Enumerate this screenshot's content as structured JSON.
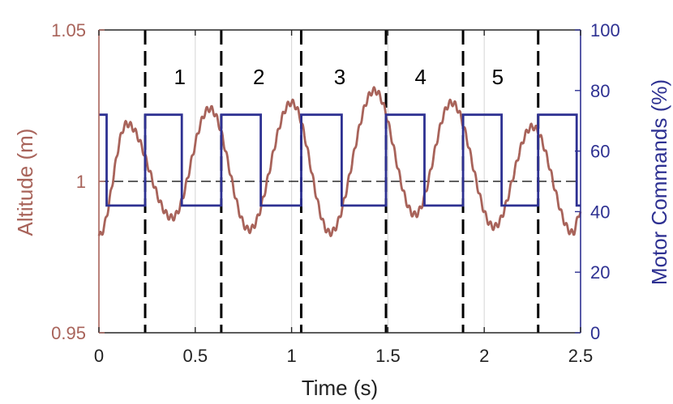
{
  "chart_data": {
    "type": "line",
    "xlabel": "Time (s)",
    "ylabel_left": "Altitude (m)",
    "ylabel_right": "Motor Commands (%)",
    "xlim": [
      0,
      2.5
    ],
    "ylim_left": [
      0.95,
      1.05
    ],
    "ylim_right": [
      0,
      100
    ],
    "x_ticks": [
      0,
      0.5,
      1,
      1.5,
      2,
      2.5
    ],
    "x_tick_labels": [
      "0",
      "0.5",
      "1",
      "1.5",
      "2",
      "2.5"
    ],
    "y_left_ticks": [
      0.95,
      1,
      1.05
    ],
    "y_left_tick_labels": [
      "0.95",
      "1",
      "1.05"
    ],
    "y_right_ticks": [
      0,
      20,
      40,
      60,
      80,
      100
    ],
    "y_right_tick_labels": [
      "0",
      "20",
      "40",
      "60",
      "80",
      "100"
    ],
    "grid": "vertical",
    "reference_line_left": 1.0,
    "phase_boundaries": [
      0.24,
      0.635,
      1.05,
      1.49,
      1.89,
      2.28
    ],
    "phase_labels": [
      {
        "text": "1",
        "x": 0.42
      },
      {
        "text": "2",
        "x": 0.83
      },
      {
        "text": "3",
        "x": 1.25
      },
      {
        "text": "4",
        "x": 1.67
      },
      {
        "text": "5",
        "x": 2.07
      }
    ],
    "series": [
      {
        "axis": "left",
        "color": "#a8635a",
        "extrema": [
          [
            0.0,
            0.982
          ],
          [
            0.145,
            1.019
          ],
          [
            0.38,
            0.988
          ],
          [
            0.575,
            1.024
          ],
          [
            0.78,
            0.984
          ],
          [
            1.0,
            1.026
          ],
          [
            1.2,
            0.983
          ],
          [
            1.43,
            1.03
          ],
          [
            1.64,
            0.989
          ],
          [
            1.83,
            1.026
          ],
          [
            2.05,
            0.985
          ],
          [
            2.25,
            1.018
          ],
          [
            2.46,
            0.983
          ],
          [
            2.5,
            0.99
          ]
        ]
      },
      {
        "axis": "right",
        "color": "#2e3192",
        "step_high": 72,
        "step_low": 42,
        "steps": [
          [
            0.0,
            72
          ],
          [
            0.04,
            42
          ],
          [
            0.24,
            72
          ],
          [
            0.43,
            42
          ],
          [
            0.635,
            72
          ],
          [
            0.84,
            42
          ],
          [
            1.05,
            72
          ],
          [
            1.26,
            42
          ],
          [
            1.49,
            72
          ],
          [
            1.69,
            42
          ],
          [
            1.89,
            72
          ],
          [
            2.09,
            42
          ],
          [
            2.28,
            72
          ],
          [
            2.48,
            42
          ],
          [
            2.5,
            42
          ]
        ]
      }
    ]
  }
}
